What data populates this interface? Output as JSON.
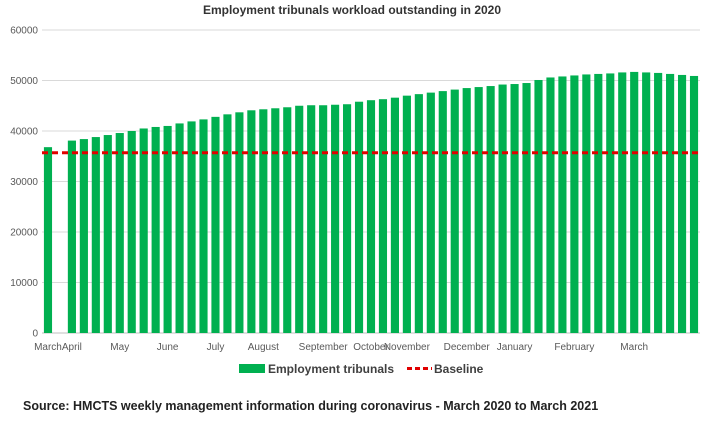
{
  "chart_data": {
    "type": "bar",
    "title": "Employment tribunals workload outstanding in 2020",
    "xlabel": "",
    "ylabel": "",
    "ylim": [
      0,
      60000
    ],
    "yticks": [
      "0",
      "10000",
      "20000",
      "30000",
      "40000",
      "50000",
      "60000"
    ],
    "grid": true,
    "legend_position": "bottom",
    "x_tick_labels": [
      {
        "label": "March",
        "index": 0
      },
      {
        "label": "April",
        "index": 2
      },
      {
        "label": "May",
        "index": 6
      },
      {
        "label": "June",
        "index": 10
      },
      {
        "label": "July",
        "index": 14
      },
      {
        "label": "August",
        "index": 18
      },
      {
        "label": "September",
        "index": 23
      },
      {
        "label": "October",
        "index": 27
      },
      {
        "label": "November",
        "index": 30
      },
      {
        "label": "December",
        "index": 35
      },
      {
        "label": "January",
        "index": 39
      },
      {
        "label": "February",
        "index": 44
      },
      {
        "label": "March",
        "index": 49
      }
    ],
    "series": [
      {
        "name": "Employment tribunals",
        "color": "#00b050",
        "values": [
          36800,
          null,
          38100,
          38400,
          38800,
          39200,
          39600,
          40000,
          40500,
          40800,
          41000,
          41500,
          41900,
          42300,
          42800,
          43300,
          43700,
          44100,
          44300,
          44500,
          44700,
          45000,
          45100,
          45100,
          45200,
          45300,
          45800,
          46100,
          46300,
          46600,
          47000,
          47300,
          47600,
          47900,
          48200,
          48500,
          48700,
          48900,
          49200,
          49300,
          49500,
          50100,
          50600,
          50800,
          51000,
          51200,
          51300,
          51400,
          51600,
          51700,
          51600,
          51500,
          51300,
          51100,
          50900
        ]
      },
      {
        "name": "Baseline",
        "color": "#e00000",
        "style": "dashed",
        "value": 35700
      }
    ]
  },
  "source": "Source: HMCTS weekly management information during coronavirus - March 2020 to March 2021"
}
